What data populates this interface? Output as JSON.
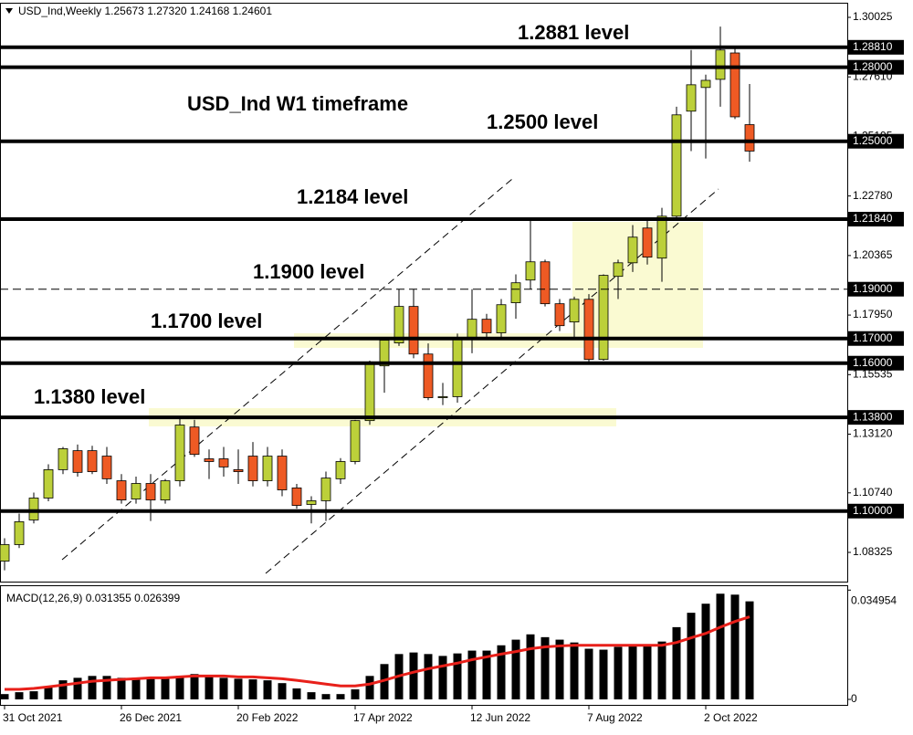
{
  "chart_data": [
    {
      "type": "candlestick",
      "title": "USD_Ind,Weekly  1.25673 1.27320 1.24168 1.24601",
      "categories": [
        "31 Oct 2021",
        null,
        null,
        null,
        null,
        null,
        null,
        null,
        "26 Dec 2021",
        null,
        null,
        null,
        null,
        null,
        null,
        null,
        "20 Feb 2022",
        null,
        null,
        null,
        null,
        null,
        null,
        null,
        "17 Apr 2022",
        null,
        null,
        null,
        null,
        null,
        null,
        null,
        "12 Jun 2022",
        null,
        null,
        null,
        null,
        null,
        null,
        null,
        "7 Aug 2022",
        null,
        null,
        null,
        null,
        null,
        null,
        null,
        "2 Oct 2022",
        null,
        null,
        null
      ],
      "open": [
        1.0797,
        1.0864,
        1.0964,
        1.1053,
        1.1168,
        1.1245,
        1.1245,
        1.1223,
        1.1123,
        1.1049,
        1.1112,
        1.1045,
        1.1123,
        1.1341,
        1.1212,
        1.1212,
        1.1168,
        1.1223,
        1.1123,
        1.1223,
        1.1094,
        1.1027,
        1.1042,
        1.1131,
        1.1201,
        1.1367,
        1.1589,
        1.1682,
        1.183,
        1.1637,
        1.146,
        1.1464,
        1.1697,
        1.1778,
        1.1723,
        1.1845,
        1.1937,
        1.2011,
        1.1841,
        1.1767,
        1.1859,
        1.1615,
        1.1952,
        1.2007,
        1.2148,
        1.2026,
        1.2196,
        1.2622,
        1.2718,
        1.2751,
        1.2858,
        1.25673
      ],
      "high": [
        1.089,
        1.099,
        1.1075,
        1.119,
        1.126,
        1.127,
        1.1265,
        1.126,
        1.115,
        1.114,
        1.115,
        1.113,
        1.138,
        1.137,
        1.125,
        1.126,
        1.125,
        1.128,
        1.126,
        1.125,
        1.111,
        1.106,
        1.116,
        1.1215,
        1.137,
        1.161,
        1.17,
        1.19,
        1.19,
        1.168,
        1.152,
        1.172,
        1.19,
        1.18,
        1.186,
        1.196,
        1.219,
        1.202,
        1.186,
        1.187,
        1.188,
        1.196,
        1.202,
        1.216,
        1.219,
        1.223,
        1.264,
        1.287,
        1.277,
        1.2965,
        1.288,
        1.2732
      ],
      "low": [
        1.076,
        1.085,
        1.095,
        1.104,
        1.115,
        1.114,
        1.115,
        1.111,
        1.103,
        1.103,
        1.096,
        1.103,
        1.11,
        1.122,
        1.113,
        1.114,
        1.111,
        1.11,
        1.11,
        1.106,
        1.101,
        1.095,
        1.096,
        1.111,
        1.119,
        1.135,
        1.148,
        1.167,
        1.162,
        1.145,
        1.143,
        1.144,
        1.164,
        1.17,
        1.17,
        1.178,
        1.19,
        1.183,
        1.173,
        1.17,
        1.16,
        1.161,
        1.186,
        1.197,
        1.2,
        1.193,
        1.219,
        1.246,
        1.243,
        1.264,
        1.259,
        1.24168
      ],
      "close": [
        1.0864,
        1.0957,
        1.1053,
        1.1168,
        1.1253,
        1.1157,
        1.116,
        1.1131,
        1.1045,
        1.1112,
        1.1045,
        1.1123,
        1.1349,
        1.123,
        1.1201,
        1.1179,
        1.116,
        1.1123,
        1.1223,
        1.1086,
        1.1023,
        1.1042,
        1.1134,
        1.1201,
        1.1367,
        1.1604,
        1.1693,
        1.183,
        1.1637,
        1.146,
        1.1464,
        1.1704,
        1.1778,
        1.1723,
        1.1837,
        1.1926,
        1.2011,
        1.1841,
        1.1752,
        1.1859,
        1.1615,
        1.1956,
        1.2007,
        1.2111,
        1.203,
        1.2196,
        1.2607,
        1.2729,
        1.2747,
        1.287,
        1.2599,
        1.24601
      ],
      "up_color": "#bcd03a",
      "down_color": "#ee5a24",
      "ylim": [
        1.0714,
        1.3058
      ],
      "yticks": [
        1.30025,
        {
          "value": 1.2761,
          "label": "1.27610"
        },
        1.25195,
        {
          "value": 1.2278,
          "label": "1.22780"
        },
        {
          "value": 1.20365,
          "label": "1.20365"
        },
        {
          "value": 1.1795,
          "label": "1.17950"
        },
        {
          "value": 1.15535,
          "label": "1.15535"
        },
        {
          "value": 1.1312,
          "label": "1.13120"
        },
        {
          "value": 1.1074,
          "label": "1.10740"
        },
        1.08325
      ],
      "levels": [
        {
          "value": 1.2881,
          "label": "1.28810"
        },
        {
          "value": 1.28,
          "label": "1.28000"
        },
        {
          "value": 1.25,
          "label": "1.25000"
        },
        {
          "value": 1.2184,
          "label": "1.21840"
        },
        {
          "value": 1.19,
          "label": "1.19000",
          "dashed": true
        },
        {
          "value": 1.17,
          "label": "1.17000"
        },
        {
          "value": 1.16,
          "label": "1.16000"
        },
        {
          "value": 1.138,
          "label": "1.13800"
        },
        {
          "value": 1.1,
          "label": "1.10000"
        }
      ],
      "annotations": [
        "1.2881 level",
        "USD_Ind W1 timeframe",
        "1.2500 level",
        "1.2184 level",
        "1.1900 level",
        "1.1700 level",
        "1.1380 level"
      ]
    },
    {
      "type": "macd",
      "title": "MACD(12,26,9) 0.031355 0.026399",
      "values": [
        0.0017,
        0.0023,
        0.0026,
        0.004,
        0.0061,
        0.0069,
        0.0075,
        0.0075,
        0.0069,
        0.0069,
        0.0066,
        0.0066,
        0.0075,
        0.0081,
        0.0075,
        0.0069,
        0.0066,
        0.0064,
        0.0061,
        0.0052,
        0.0035,
        0.0023,
        0.0017,
        0.0017,
        0.0032,
        0.0075,
        0.0113,
        0.0145,
        0.015,
        0.0145,
        0.0139,
        0.0147,
        0.0156,
        0.0156,
        0.0173,
        0.0191,
        0.0208,
        0.0199,
        0.0191,
        0.0182,
        0.0162,
        0.0159,
        0.0168,
        0.0176,
        0.0176,
        0.0185,
        0.0231,
        0.0277,
        0.0306,
        0.0338,
        0.0335,
        0.031355
      ],
      "signal": [
        0.0032,
        0.0032,
        0.0035,
        0.004,
        0.0046,
        0.0052,
        0.0058,
        0.0061,
        0.0064,
        0.0066,
        0.0069,
        0.0069,
        0.0072,
        0.0075,
        0.0075,
        0.0075,
        0.0072,
        0.0072,
        0.0069,
        0.0066,
        0.0061,
        0.0055,
        0.0049,
        0.0043,
        0.0043,
        0.0049,
        0.0061,
        0.0075,
        0.0087,
        0.0098,
        0.0107,
        0.0116,
        0.0127,
        0.0136,
        0.0145,
        0.0153,
        0.0162,
        0.0168,
        0.0171,
        0.0173,
        0.0173,
        0.0173,
        0.0173,
        0.0173,
        0.0173,
        0.0173,
        0.0182,
        0.0197,
        0.0211,
        0.0231,
        0.0249,
        0.026399
      ],
      "bar_color": "#000000",
      "signal_color": "#e8201a",
      "ylim": [
        0,
        0.0365
      ],
      "yticks": [
        0.034954,
        0
      ]
    }
  ]
}
